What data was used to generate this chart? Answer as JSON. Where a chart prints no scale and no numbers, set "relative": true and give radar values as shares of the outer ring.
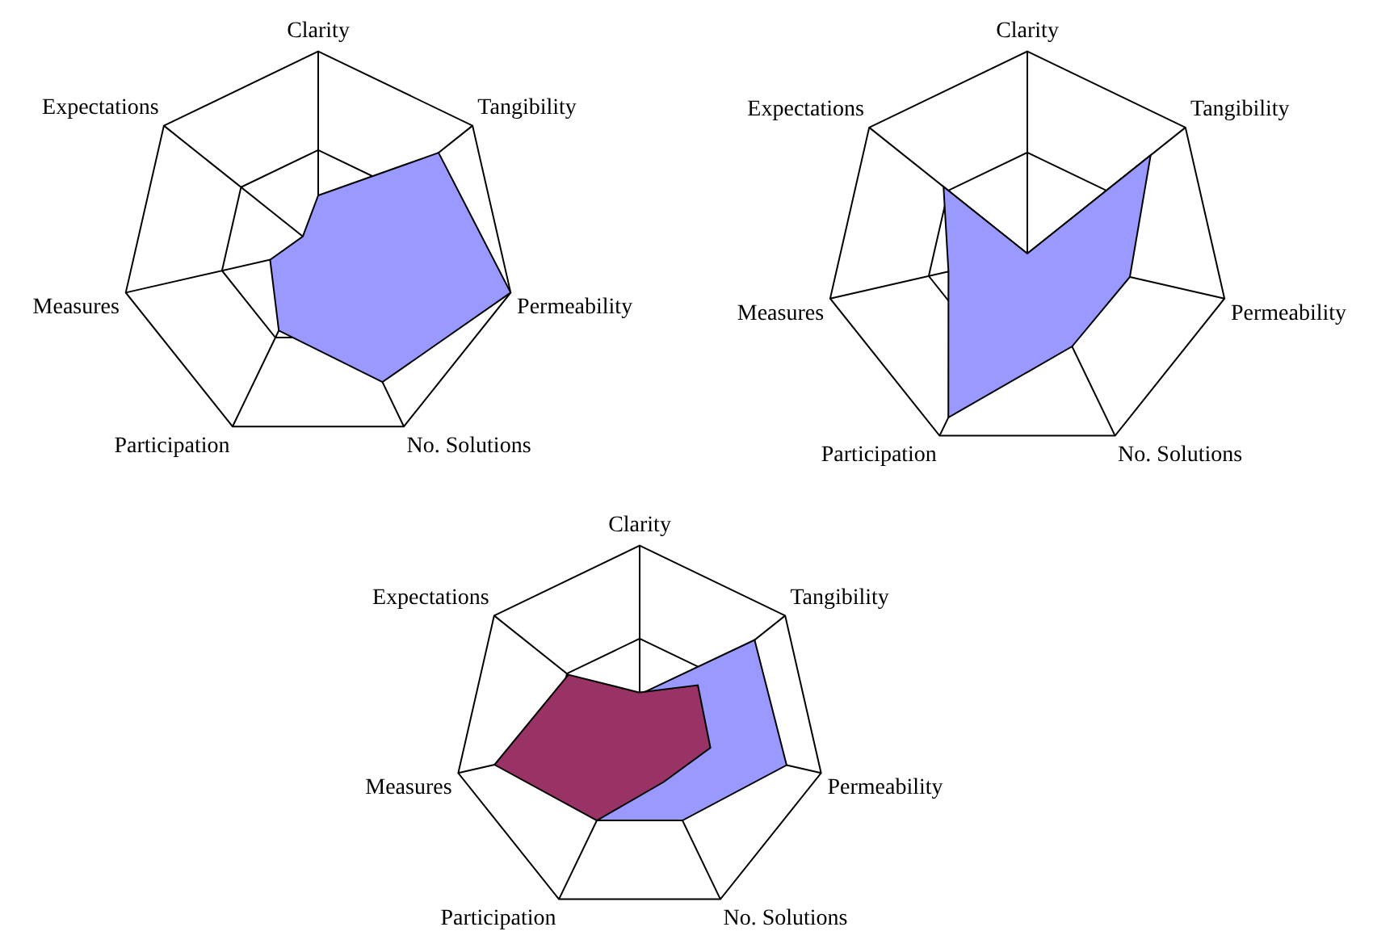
{
  "chart_data": [
    {
      "type": "radar",
      "relative": true,
      "grid": true,
      "legend": false,
      "marker": "none",
      "categories": [
        "Clarity",
        "Tangibility",
        "Permeability",
        "No. Solutions",
        "Participation",
        "Measures",
        "Expectations"
      ],
      "series": [
        {
          "color": "#9999ff",
          "values": [
            0.27,
            0.78,
            1.0,
            0.75,
            0.46,
            0.25,
            0.1
          ]
        }
      ]
    },
    {
      "type": "radar",
      "relative": true,
      "grid": true,
      "legend": false,
      "marker": "none",
      "categories": [
        "Clarity",
        "Tangibility",
        "Permeability",
        "No. Solutions",
        "Participation",
        "Measures",
        "Expectations"
      ],
      "series": [
        {
          "color": "#9999ff",
          "values": [
            0,
            0.78,
            0.52,
            0.51,
            0.9,
            0.4,
            0.53
          ]
        }
      ]
    },
    {
      "type": "radar",
      "relative": true,
      "grid": true,
      "legend": false,
      "marker": "none",
      "categories": [
        "Clarity",
        "Tangibility",
        "Permeability",
        "No. Solutions",
        "Participation",
        "Measures",
        "Expectations"
      ],
      "series": [
        {
          "color": "#9999ff",
          "values": [
            0.2,
            0.79,
            0.81,
            0.53,
            0.53,
            null,
            null
          ]
        },
        {
          "color": "#993366",
          "values": [
            0.21,
            0.4,
            0.39,
            0.3,
            0.53,
            0.8,
            0.49
          ]
        }
      ]
    }
  ]
}
